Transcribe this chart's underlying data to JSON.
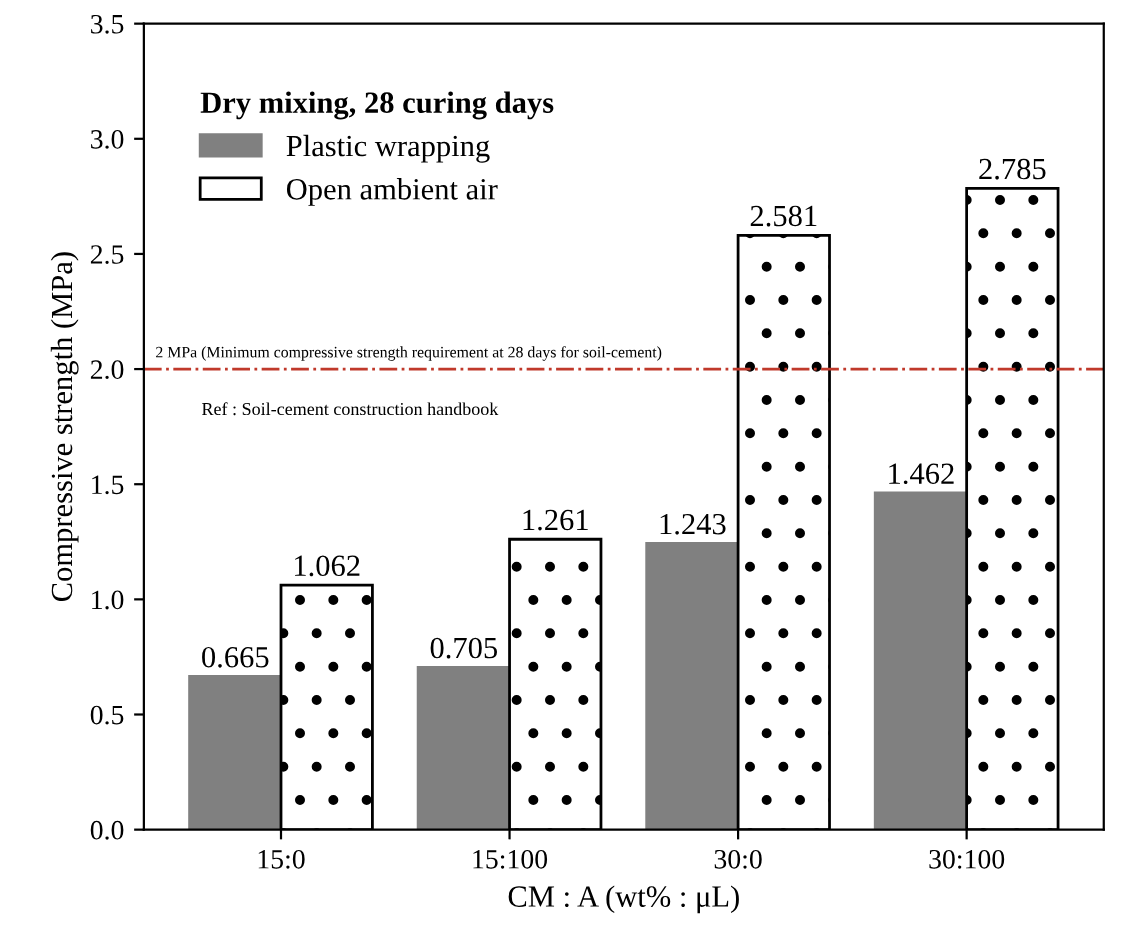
{
  "chart_data": {
    "type": "bar",
    "xlabel": "CM : A (wt% : μL)",
    "ylabel": "Compressive strength (MPa)",
    "legend_title": "Dry mixing, 28 curing days",
    "categories": [
      "15:0",
      "15:100",
      "30:0",
      "30:100"
    ],
    "series": [
      {
        "name": "Plastic wrapping",
        "color": "#808080",
        "values": [
          0.665,
          0.705,
          1.243,
          1.462
        ]
      },
      {
        "name": "Open ambient air",
        "color": "#ffffff",
        "values": [
          1.062,
          1.261,
          2.581,
          2.785
        ]
      }
    ],
    "data_labels": true,
    "ylim": [
      0,
      3.5
    ],
    "yticks": [
      {
        "value": 0,
        "label": "0.0"
      },
      {
        "value": 0.5,
        "label": "0.5"
      },
      {
        "value": 1,
        "label": "1.0"
      },
      {
        "value": 1.5,
        "label": "1.5"
      },
      {
        "value": 2,
        "label": "2.0"
      },
      {
        "value": 2.5,
        "label": "2.5"
      },
      {
        "value": 3,
        "label": "3.0"
      },
      {
        "value": 3.5,
        "label": "3.5"
      }
    ],
    "ref_lines": [
      {
        "axis": "y",
        "value": 2,
        "label": "2 MPa (Minimum compressive strength requirement at 28 days for soil-cement)",
        "color": "#c0392b",
        "line_style": "dashdot"
      }
    ],
    "annotations": [
      "Ref : Soil-cement construction handbook"
    ],
    "legend": "top left",
    "grid": false
  }
}
